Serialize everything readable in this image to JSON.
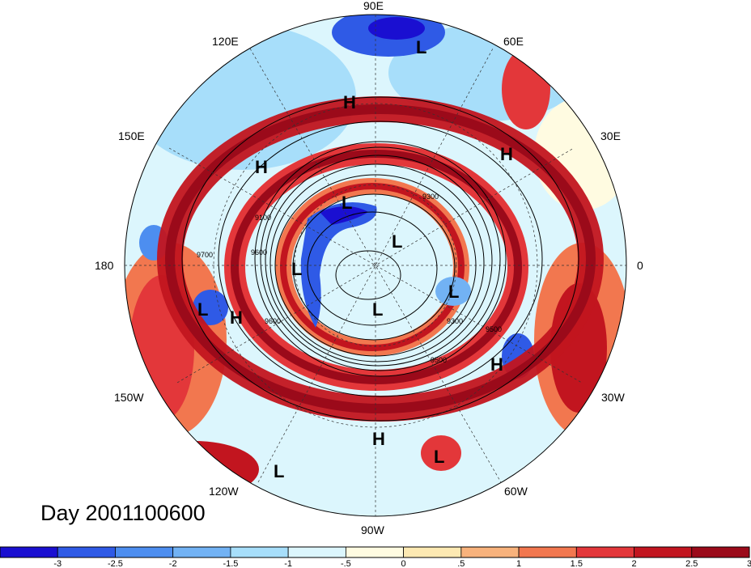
{
  "date_label": "Day 2001100600",
  "longitude_labels": [
    "90E",
    "60E",
    "30E",
    "0",
    "30W",
    "60W",
    "90W",
    "120W",
    "150W",
    "180",
    "150E",
    "120E"
  ],
  "contour_labels": [
    "9700",
    "9100",
    "9600",
    "9300",
    "9300",
    "9500",
    "9500",
    "9600"
  ],
  "pressure_systems": [
    "L",
    "H",
    "H",
    "H",
    "L",
    "L",
    "L",
    "L",
    "L",
    "L",
    "H",
    "H",
    "H",
    "L",
    "L"
  ],
  "colorbar": {
    "tick_labels": [
      "-3",
      "-2.5",
      "-2",
      "-1.5",
      "-1",
      "-.5",
      "0",
      ".5",
      "1",
      "1.5",
      "2",
      "2.5",
      "3"
    ],
    "colors": [
      "#1a0fd1",
      "#2f5ae6",
      "#4d8ef0",
      "#72b2f4",
      "#a7defa",
      "#dcf6fd",
      "#fffbe1",
      "#fde9b2",
      "#f8b27c",
      "#f2774f",
      "#e3373a",
      "#c2151f",
      "#9b0a1a"
    ]
  }
}
